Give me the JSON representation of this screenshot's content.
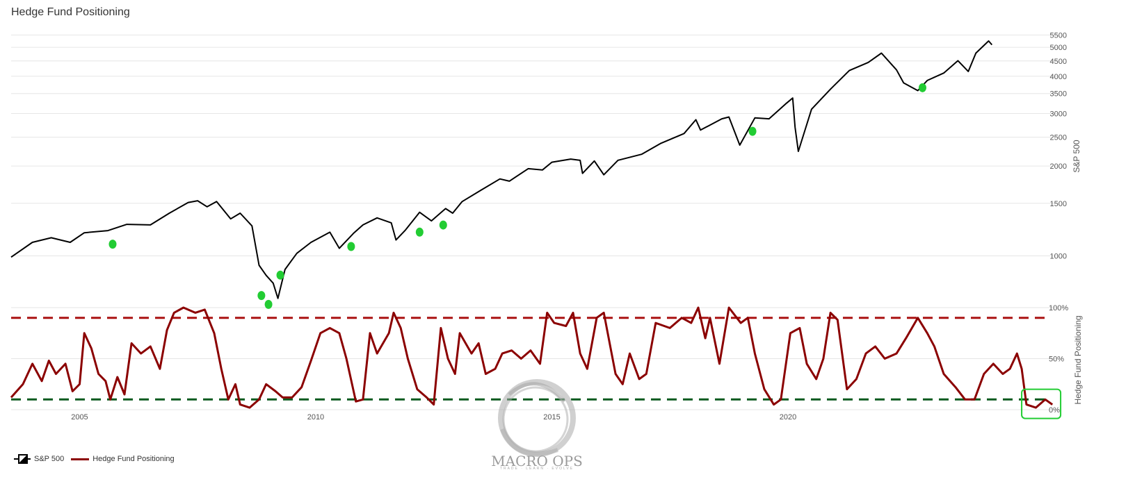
{
  "page": {
    "title": "Hedge Fund Positioning"
  },
  "chart_data": {
    "type": "line",
    "title": "Hedge Fund Positioning",
    "x_ticks": [
      2005,
      2010,
      2015,
      2020
    ],
    "top_panel": {
      "name": "S&P 500",
      "ylabel": "S&P 500",
      "scale": "log",
      "ylim": [
        700,
        5600
      ],
      "y_ticks": [
        1000,
        1500,
        2000,
        2500,
        3000,
        3500,
        4000,
        4500,
        5000,
        5500
      ],
      "color": "#000000",
      "series": [
        [
          2003.55,
          990
        ],
        [
          2004.0,
          1110
        ],
        [
          2004.4,
          1150
        ],
        [
          2004.8,
          1110
        ],
        [
          2005.1,
          1195
        ],
        [
          2005.6,
          1215
        ],
        [
          2006.0,
          1275
        ],
        [
          2006.5,
          1270
        ],
        [
          2006.9,
          1390
        ],
        [
          2007.3,
          1510
        ],
        [
          2007.5,
          1530
        ],
        [
          2007.7,
          1460
        ],
        [
          2007.9,
          1520
        ],
        [
          2008.2,
          1330
        ],
        [
          2008.4,
          1390
        ],
        [
          2008.65,
          1260
        ],
        [
          2008.8,
          930
        ],
        [
          2008.95,
          860
        ],
        [
          2009.1,
          810
        ],
        [
          2009.2,
          720
        ],
        [
          2009.35,
          900
        ],
        [
          2009.6,
          1020
        ],
        [
          2009.9,
          1110
        ],
        [
          2010.3,
          1200
        ],
        [
          2010.5,
          1060
        ],
        [
          2010.8,
          1190
        ],
        [
          2011.0,
          1270
        ],
        [
          2011.3,
          1340
        ],
        [
          2011.6,
          1290
        ],
        [
          2011.7,
          1130
        ],
        [
          2011.9,
          1220
        ],
        [
          2012.2,
          1400
        ],
        [
          2012.45,
          1310
        ],
        [
          2012.75,
          1440
        ],
        [
          2012.9,
          1390
        ],
        [
          2013.1,
          1520
        ],
        [
          2013.5,
          1660
        ],
        [
          2013.9,
          1810
        ],
        [
          2014.1,
          1780
        ],
        [
          2014.5,
          1960
        ],
        [
          2014.8,
          1940
        ],
        [
          2015.0,
          2060
        ],
        [
          2015.4,
          2110
        ],
        [
          2015.6,
          2090
        ],
        [
          2015.65,
          1890
        ],
        [
          2015.9,
          2080
        ],
        [
          2016.1,
          1870
        ],
        [
          2016.4,
          2090
        ],
        [
          2016.9,
          2190
        ],
        [
          2017.3,
          2380
        ],
        [
          2017.8,
          2570
        ],
        [
          2018.05,
          2860
        ],
        [
          2018.15,
          2640
        ],
        [
          2018.6,
          2880
        ],
        [
          2018.75,
          2920
        ],
        [
          2018.98,
          2350
        ],
        [
          2019.3,
          2900
        ],
        [
          2019.6,
          2880
        ],
        [
          2019.95,
          3230
        ],
        [
          2020.1,
          3380
        ],
        [
          2020.15,
          2700
        ],
        [
          2020.22,
          2240
        ],
        [
          2020.5,
          3100
        ],
        [
          2020.9,
          3620
        ],
        [
          2021.3,
          4180
        ],
        [
          2021.7,
          4450
        ],
        [
          2021.98,
          4780
        ],
        [
          2022.3,
          4200
        ],
        [
          2022.45,
          3800
        ],
        [
          2022.75,
          3580
        ],
        [
          2022.95,
          3870
        ],
        [
          2023.3,
          4100
        ],
        [
          2023.6,
          4510
        ],
        [
          2023.82,
          4150
        ],
        [
          2023.98,
          4780
        ],
        [
          2024.25,
          5250
        ],
        [
          2024.32,
          5100
        ]
      ],
      "highlight_points": [
        [
          2005.7,
          1130
        ],
        [
          2008.85,
          760
        ],
        [
          2009.0,
          710
        ],
        [
          2009.25,
          890
        ],
        [
          2010.75,
          1110
        ],
        [
          2012.2,
          1240
        ],
        [
          2012.7,
          1310
        ],
        [
          2019.25,
          2700
        ],
        [
          2022.85,
          3780
        ]
      ],
      "highlight_color": "#22cc33"
    },
    "bottom_panel": {
      "name": "Hedge Fund Positioning",
      "ylabel": "Hedge Fund Positioning",
      "ylim": [
        0,
        100
      ],
      "y_ticks": [
        "0%",
        "50%",
        "100%"
      ],
      "color": "#8b0000",
      "upper_threshold": 90,
      "lower_threshold": 10,
      "upper_threshold_color": "#aa1111",
      "lower_threshold_color": "#0b5a1e",
      "series": [
        [
          2003.55,
          12
        ],
        [
          2003.8,
          25
        ],
        [
          2004.0,
          45
        ],
        [
          2004.2,
          28
        ],
        [
          2004.35,
          48
        ],
        [
          2004.5,
          35
        ],
        [
          2004.7,
          45
        ],
        [
          2004.85,
          18
        ],
        [
          2005.0,
          25
        ],
        [
          2005.1,
          75
        ],
        [
          2005.25,
          60
        ],
        [
          2005.4,
          35
        ],
        [
          2005.55,
          28
        ],
        [
          2005.65,
          10
        ],
        [
          2005.8,
          32
        ],
        [
          2005.95,
          15
        ],
        [
          2006.1,
          65
        ],
        [
          2006.3,
          55
        ],
        [
          2006.5,
          62
        ],
        [
          2006.7,
          40
        ],
        [
          2006.85,
          78
        ],
        [
          2007.0,
          95
        ],
        [
          2007.2,
          100
        ],
        [
          2007.45,
          95
        ],
        [
          2007.65,
          98
        ],
        [
          2007.85,
          75
        ],
        [
          2008.0,
          40
        ],
        [
          2008.15,
          10
        ],
        [
          2008.3,
          25
        ],
        [
          2008.4,
          5
        ],
        [
          2008.6,
          2
        ],
        [
          2008.8,
          10
        ],
        [
          2008.95,
          25
        ],
        [
          2009.15,
          18
        ],
        [
          2009.3,
          12
        ],
        [
          2009.5,
          12
        ],
        [
          2009.7,
          22
        ],
        [
          2009.9,
          48
        ],
        [
          2010.1,
          75
        ],
        [
          2010.3,
          80
        ],
        [
          2010.5,
          75
        ],
        [
          2010.65,
          50
        ],
        [
          2010.85,
          8
        ],
        [
          2011.0,
          10
        ],
        [
          2011.15,
          75
        ],
        [
          2011.3,
          55
        ],
        [
          2011.55,
          75
        ],
        [
          2011.65,
          95
        ],
        [
          2011.8,
          80
        ],
        [
          2011.95,
          50
        ],
        [
          2012.15,
          20
        ],
        [
          2012.35,
          12
        ],
        [
          2012.5,
          5
        ],
        [
          2012.65,
          80
        ],
        [
          2012.8,
          50
        ],
        [
          2012.95,
          35
        ],
        [
          2013.05,
          75
        ],
        [
          2013.3,
          55
        ],
        [
          2013.45,
          65
        ],
        [
          2013.6,
          35
        ],
        [
          2013.8,
          40
        ],
        [
          2013.95,
          55
        ],
        [
          2014.15,
          58
        ],
        [
          2014.35,
          50
        ],
        [
          2014.55,
          58
        ],
        [
          2014.75,
          45
        ],
        [
          2014.9,
          95
        ],
        [
          2015.05,
          85
        ],
        [
          2015.3,
          82
        ],
        [
          2015.45,
          95
        ],
        [
          2015.6,
          55
        ],
        [
          2015.75,
          40
        ],
        [
          2015.95,
          90
        ],
        [
          2016.1,
          95
        ],
        [
          2016.35,
          35
        ],
        [
          2016.5,
          25
        ],
        [
          2016.65,
          55
        ],
        [
          2016.85,
          30
        ],
        [
          2017.0,
          35
        ],
        [
          2017.2,
          85
        ],
        [
          2017.5,
          80
        ],
        [
          2017.75,
          90
        ],
        [
          2017.95,
          85
        ],
        [
          2018.1,
          100
        ],
        [
          2018.25,
          70
        ],
        [
          2018.35,
          90
        ],
        [
          2018.55,
          45
        ],
        [
          2018.75,
          100
        ],
        [
          2019.0,
          85
        ],
        [
          2019.15,
          90
        ],
        [
          2019.3,
          55
        ],
        [
          2019.5,
          20
        ],
        [
          2019.7,
          5
        ],
        [
          2019.85,
          10
        ],
        [
          2020.05,
          75
        ],
        [
          2020.25,
          80
        ],
        [
          2020.4,
          45
        ],
        [
          2020.6,
          30
        ],
        [
          2020.75,
          50
        ],
        [
          2020.9,
          95
        ],
        [
          2021.05,
          88
        ],
        [
          2021.25,
          20
        ],
        [
          2021.45,
          30
        ],
        [
          2021.65,
          55
        ],
        [
          2021.85,
          62
        ],
        [
          2022.05,
          50
        ],
        [
          2022.3,
          55
        ],
        [
          2022.5,
          70
        ],
        [
          2022.75,
          90
        ],
        [
          2022.95,
          75
        ],
        [
          2023.1,
          62
        ],
        [
          2023.3,
          35
        ],
        [
          2023.55,
          22
        ],
        [
          2023.75,
          10
        ],
        [
          2023.95,
          10
        ],
        [
          2024.15,
          35
        ],
        [
          2024.35,
          45
        ],
        [
          2024.55,
          35
        ],
        [
          2024.7,
          40
        ],
        [
          2024.85,
          55
        ],
        [
          2024.95,
          40
        ],
        [
          2025.05,
          5
        ],
        [
          2025.25,
          2
        ],
        [
          2025.45,
          10
        ],
        [
          2025.6,
          5
        ]
      ],
      "highlight_box": true
    },
    "legend": [
      "S&P 500",
      "Hedge Fund Positioning"
    ],
    "legend_placement": "bottom-left",
    "grid": true
  },
  "watermark": {
    "text": "MACRO OPS",
    "sub": "TRADE · LEARN · EVOLVE"
  }
}
